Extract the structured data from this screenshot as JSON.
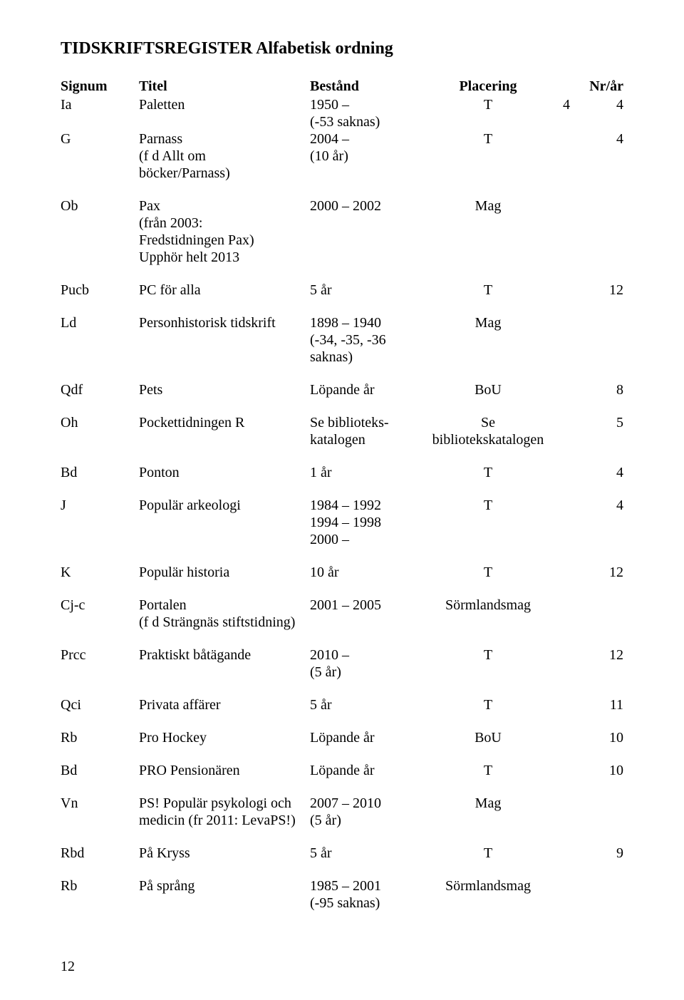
{
  "title": "TIDSKRIFTSREGISTER  Alfabetisk ordning",
  "headers": {
    "signum": "Signum",
    "titel": "Titel",
    "bestand": "Bestånd",
    "placering": "Placering",
    "nrar": "Nr/år"
  },
  "rows": [
    {
      "signum": "Ia",
      "titel": [
        "Paletten"
      ],
      "bestand": [
        "1950 –",
        "(-53 saknas)"
      ],
      "placering": "T",
      "nrar": "4             4"
    },
    {
      "signum": "G",
      "titel": [
        "Parnass",
        "(f d Allt om",
        "böcker/Parnass)"
      ],
      "bestand": [
        "2004 –",
        "(10 år)"
      ],
      "placering": "T",
      "nrar": "4"
    },
    {
      "signum": "Ob",
      "titel": [
        "Pax",
        "(från 2003:",
        "Fredstidningen Pax)",
        "Upphör helt 2013"
      ],
      "bestand": [
        "2000 – 2002"
      ],
      "placering": "Mag",
      "nrar": ""
    },
    {
      "signum": "Pucb",
      "titel": [
        "PC för alla"
      ],
      "bestand": [
        "5 år"
      ],
      "placering": "T",
      "nrar": "12"
    },
    {
      "signum": "Ld",
      "titel": [
        "Personhistorisk tidskrift"
      ],
      "bestand": [
        "1898 – 1940",
        "(-34, -35, -36",
        "saknas)"
      ],
      "placering": "Mag",
      "nrar": ""
    },
    {
      "signum": "Qdf",
      "titel": [
        "Pets"
      ],
      "bestand": [
        "Löpande år"
      ],
      "placering": "BoU",
      "nrar": "8"
    },
    {
      "signum": "Oh",
      "titel": [
        "Pockettidningen R"
      ],
      "bestand": [
        "Se biblioteks-",
        "katalogen"
      ],
      "placering": "Se\nbibliotekskatalogen",
      "nrar": "5"
    },
    {
      "signum": "Bd",
      "titel": [
        "Ponton"
      ],
      "bestand": [
        "1 år"
      ],
      "placering": "T",
      "nrar": "4"
    },
    {
      "signum": "J",
      "titel": [
        "Populär arkeologi"
      ],
      "bestand": [
        "1984 – 1992",
        "1994 – 1998",
        "2000 –"
      ],
      "placering": "T",
      "nrar": "4"
    },
    {
      "signum": "K",
      "titel": [
        "Populär historia"
      ],
      "bestand": [
        "10 år"
      ],
      "placering": "T",
      "nrar": "12"
    },
    {
      "signum": "Cj-c",
      "titel": [
        "Portalen",
        "(f d Strängnäs stiftstidning)"
      ],
      "bestand": [
        "2001 – 2005"
      ],
      "placering": "Sörmlandsmag",
      "nrar": ""
    },
    {
      "signum": "Prcc",
      "titel": [
        "Praktiskt båtägande"
      ],
      "bestand": [
        "2010 –",
        "(5 år)"
      ],
      "placering": "T",
      "nrar": "12"
    },
    {
      "signum": "Qci",
      "titel": [
        "Privata affärer"
      ],
      "bestand": [
        "5 år"
      ],
      "placering": "T",
      "nrar": "11"
    },
    {
      "signum": "Rb",
      "titel": [
        "Pro Hockey"
      ],
      "bestand": [
        "Löpande år"
      ],
      "placering": "BoU",
      "nrar": "10"
    },
    {
      "signum": "Bd",
      "titel": [
        "PRO Pensionären"
      ],
      "bestand": [
        "Löpande år"
      ],
      "placering": "T",
      "nrar": "10"
    },
    {
      "signum": "Vn",
      "titel": [
        "PS! Populär psykologi och",
        "medicin (fr 2011: LevaPS!)"
      ],
      "bestand": [
        "2007 – 2010",
        "(5 år)"
      ],
      "placering": "Mag",
      "nrar": ""
    },
    {
      "signum": "Rbd",
      "titel": [
        "På Kryss"
      ],
      "bestand": [
        "5 år"
      ],
      "placering": "T",
      "nrar": "9"
    },
    {
      "signum": "Rb",
      "titel": [
        "På språng"
      ],
      "bestand": [
        "1985 – 2001",
        "(-95 saknas)"
      ],
      "placering": "Sörmlandsmag",
      "nrar": ""
    }
  ],
  "pageNumber": "12"
}
